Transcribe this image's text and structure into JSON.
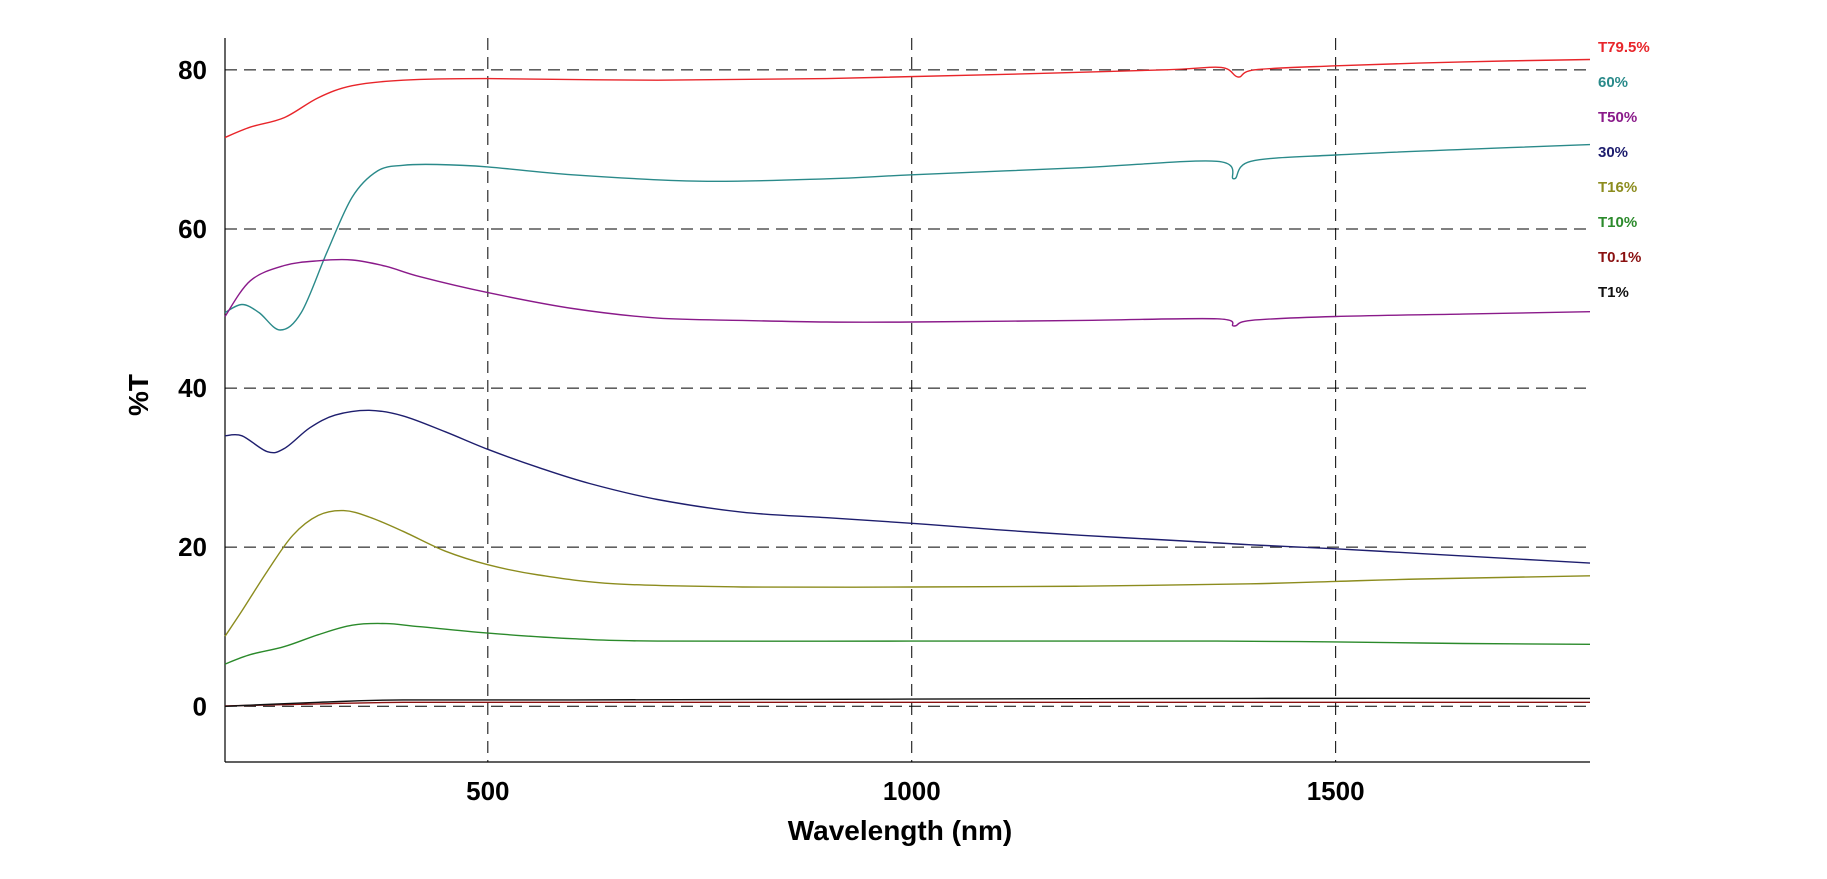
{
  "chart_data": {
    "type": "line",
    "title": "",
    "xlabel": "Wavelength (nm)",
    "ylabel": "%T",
    "xlim": [
      190,
      1800
    ],
    "ylim": [
      -7,
      84
    ],
    "xticks": [
      500,
      1000,
      1500
    ],
    "yticks": [
      0,
      20,
      40,
      60,
      80
    ],
    "grid": true,
    "legend_position": "right",
    "series": [
      {
        "name": "T79.5%",
        "color": "#e8252a",
        "points": [
          [
            190,
            71.5
          ],
          [
            220,
            72.8
          ],
          [
            260,
            74
          ],
          [
            300,
            76.5
          ],
          [
            340,
            78
          ],
          [
            400,
            78.7
          ],
          [
            500,
            78.9
          ],
          [
            700,
            78.7
          ],
          [
            900,
            78.9
          ],
          [
            1100,
            79.4
          ],
          [
            1300,
            80
          ],
          [
            1365,
            80.3
          ],
          [
            1385,
            79.1
          ],
          [
            1405,
            80
          ],
          [
            1500,
            80.5
          ],
          [
            1650,
            81
          ],
          [
            1800,
            81.3
          ]
        ]
      },
      {
        "name": "60%",
        "color": "#2a8a8a",
        "points": [
          [
            190,
            49.5
          ],
          [
            210,
            50.5
          ],
          [
            230,
            49.5
          ],
          [
            255,
            47.3
          ],
          [
            280,
            49.5
          ],
          [
            310,
            57
          ],
          [
            340,
            64
          ],
          [
            370,
            67.3
          ],
          [
            400,
            68
          ],
          [
            440,
            68.1
          ],
          [
            500,
            67.8
          ],
          [
            600,
            66.8
          ],
          [
            750,
            66
          ],
          [
            900,
            66.3
          ],
          [
            1000,
            66.8
          ],
          [
            1200,
            67.7
          ],
          [
            1360,
            68.5
          ],
          [
            1380,
            66.3
          ],
          [
            1400,
            68.5
          ],
          [
            1500,
            69.3
          ],
          [
            1650,
            70
          ],
          [
            1800,
            70.6
          ]
        ]
      },
      {
        "name": "T50%",
        "color": "#8a1a8a",
        "points": [
          [
            190,
            49
          ],
          [
            220,
            53.5
          ],
          [
            260,
            55.4
          ],
          [
            300,
            56
          ],
          [
            340,
            56.1
          ],
          [
            380,
            55.3
          ],
          [
            420,
            54
          ],
          [
            500,
            52
          ],
          [
            600,
            50
          ],
          [
            700,
            48.8
          ],
          [
            800,
            48.5
          ],
          [
            900,
            48.3
          ],
          [
            1000,
            48.3
          ],
          [
            1200,
            48.5
          ],
          [
            1360,
            48.7
          ],
          [
            1380,
            47.8
          ],
          [
            1400,
            48.5
          ],
          [
            1500,
            49
          ],
          [
            1650,
            49.3
          ],
          [
            1800,
            49.6
          ]
        ]
      },
      {
        "name": "30%",
        "color": "#1e1e6e",
        "points": [
          [
            190,
            34
          ],
          [
            210,
            34
          ],
          [
            240,
            32
          ],
          [
            260,
            32.4
          ],
          [
            290,
            35
          ],
          [
            320,
            36.6
          ],
          [
            360,
            37.2
          ],
          [
            400,
            36.5
          ],
          [
            450,
            34.5
          ],
          [
            500,
            32.3
          ],
          [
            560,
            30
          ],
          [
            620,
            28
          ],
          [
            700,
            26
          ],
          [
            800,
            24.4
          ],
          [
            900,
            23.7
          ],
          [
            1000,
            23
          ],
          [
            1100,
            22.2
          ],
          [
            1200,
            21.5
          ],
          [
            1300,
            20.9
          ],
          [
            1400,
            20.3
          ],
          [
            1500,
            19.8
          ],
          [
            1600,
            19.2
          ],
          [
            1700,
            18.6
          ],
          [
            1800,
            18
          ]
        ]
      },
      {
        "name": "T16%",
        "color": "#8c8c1e",
        "points": [
          [
            190,
            8.8
          ],
          [
            210,
            12
          ],
          [
            240,
            17
          ],
          [
            270,
            21.5
          ],
          [
            300,
            24
          ],
          [
            330,
            24.6
          ],
          [
            360,
            23.8
          ],
          [
            400,
            22
          ],
          [
            450,
            19.5
          ],
          [
            500,
            17.8
          ],
          [
            560,
            16.5
          ],
          [
            650,
            15.4
          ],
          [
            800,
            15
          ],
          [
            1000,
            15
          ],
          [
            1200,
            15.1
          ],
          [
            1400,
            15.4
          ],
          [
            1500,
            15.7
          ],
          [
            1600,
            16
          ],
          [
            1800,
            16.4
          ]
        ]
      },
      {
        "name": "T10%",
        "color": "#2b8a2b",
        "points": [
          [
            190,
            5.3
          ],
          [
            220,
            6.5
          ],
          [
            260,
            7.5
          ],
          [
            300,
            9
          ],
          [
            340,
            10.2
          ],
          [
            380,
            10.4
          ],
          [
            420,
            10
          ],
          [
            500,
            9.2
          ],
          [
            600,
            8.5
          ],
          [
            700,
            8.2
          ],
          [
            1000,
            8.2
          ],
          [
            1300,
            8.2
          ],
          [
            1360,
            8.2
          ],
          [
            1500,
            8.1
          ],
          [
            1650,
            7.9
          ],
          [
            1800,
            7.8
          ]
        ]
      },
      {
        "name": "T0.1%",
        "color": "#8a1010",
        "points": [
          [
            190,
            0.05
          ],
          [
            300,
            0.3
          ],
          [
            400,
            0.5
          ],
          [
            600,
            0.5
          ],
          [
            1000,
            0.5
          ],
          [
            1400,
            0.5
          ],
          [
            1800,
            0.5
          ]
        ]
      },
      {
        "name": "T1%",
        "color": "#111111",
        "points": [
          [
            190,
            0
          ],
          [
            300,
            0.5
          ],
          [
            400,
            0.8
          ],
          [
            600,
            0.8
          ],
          [
            1000,
            0.9
          ],
          [
            1400,
            1
          ],
          [
            1800,
            1
          ]
        ]
      }
    ]
  }
}
